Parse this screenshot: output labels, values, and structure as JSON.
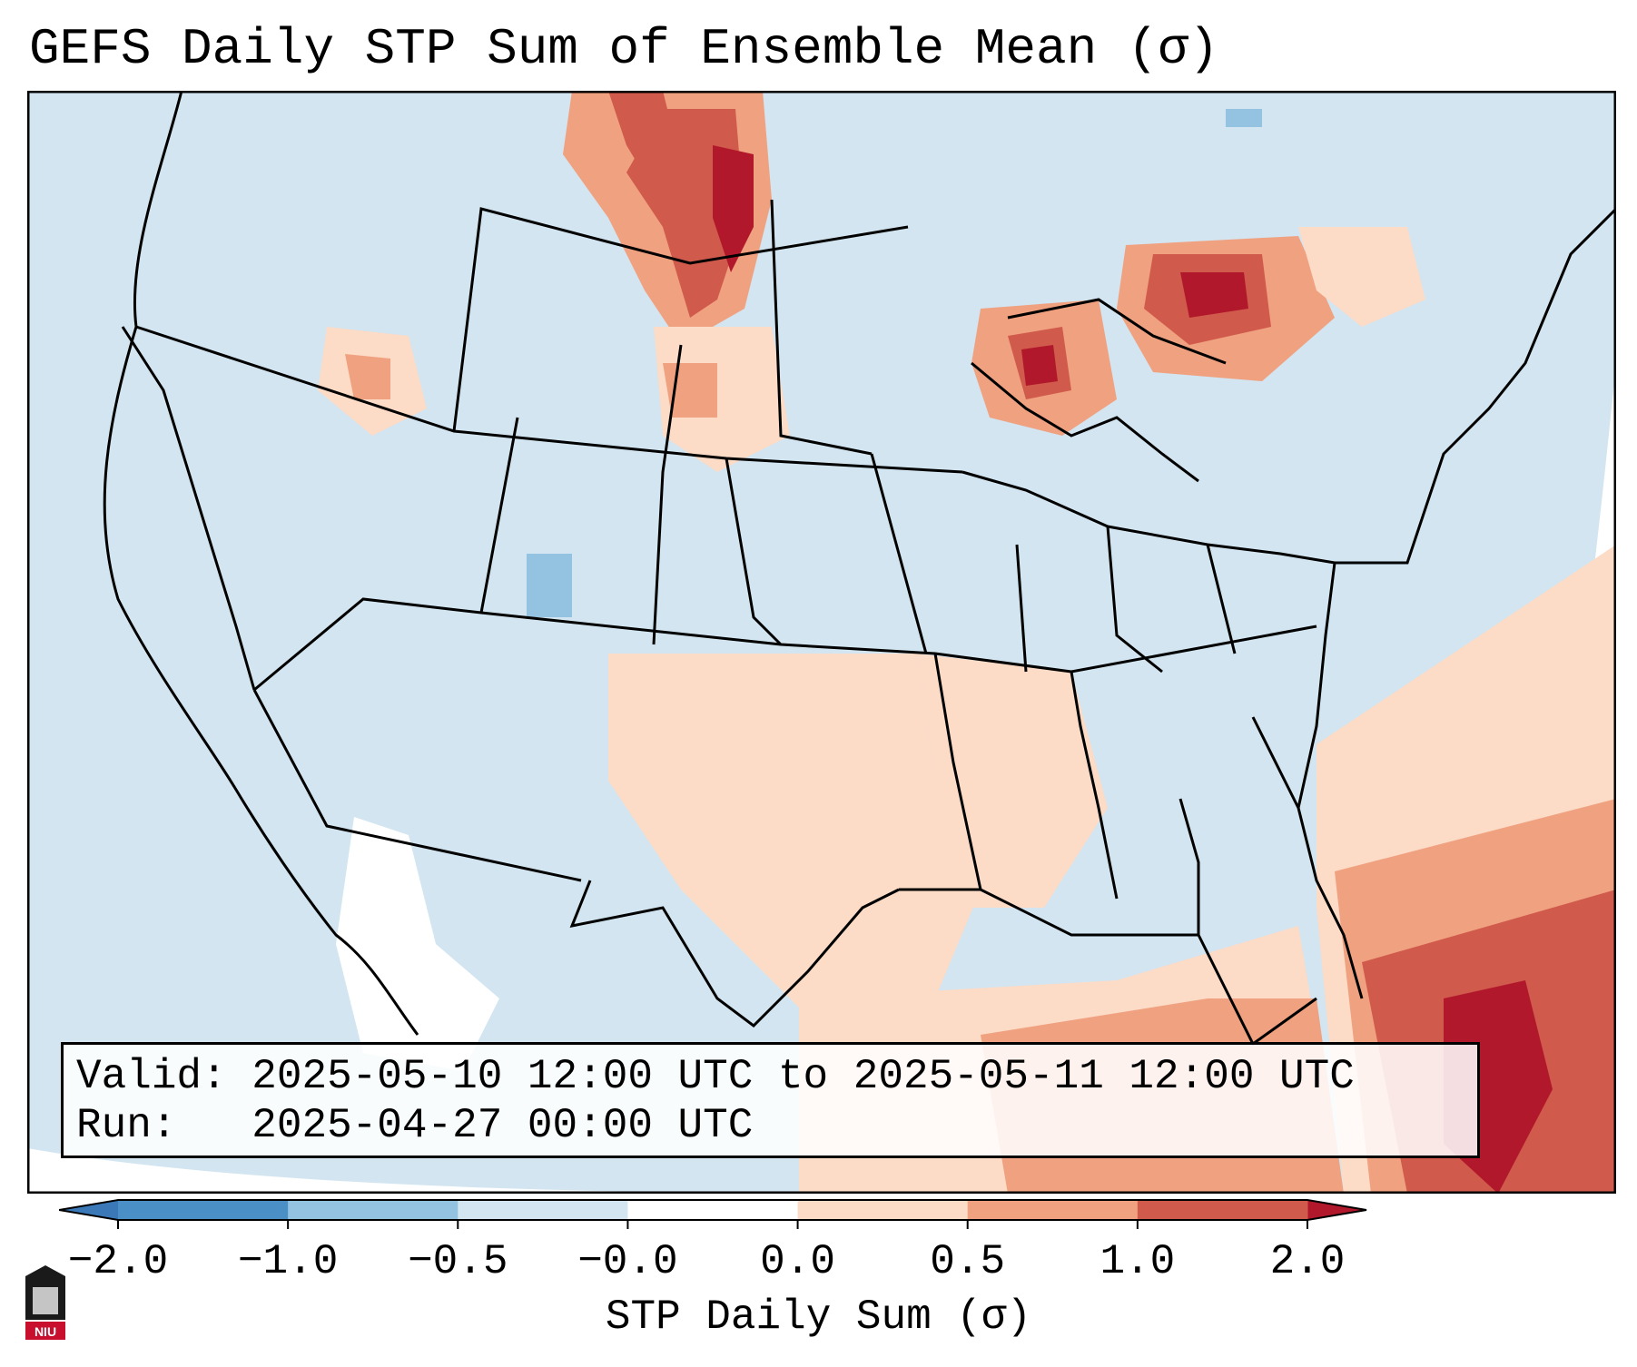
{
  "title": "GEFS Daily STP Sum of Ensemble Mean (σ)",
  "info": {
    "valid_label": "Valid:",
    "valid_value": "2025-05-10 12:00 UTC to 2025-05-11 12:00 UTC",
    "run_label": "Run:",
    "run_value": "2025-04-27 00:00 UTC"
  },
  "colorbar": {
    "label": "STP Daily Sum (σ)",
    "ticks": [
      "−2.0",
      "−1.0",
      "−0.5",
      "−0.0",
      "0.0",
      "0.5",
      "1.0",
      "2.0"
    ],
    "colors": [
      "#4a8fc6",
      "#93c3e0",
      "#d2e5f0",
      "#ffffff",
      "#fcdbc7",
      "#f0a180",
      "#d05a4c"
    ],
    "extend_low": "#3a78b8",
    "extend_high": "#b2182b"
  },
  "map": {
    "background": "#d2e5f0",
    "anomaly_regions": [
      {
        "region": "Northern Plains",
        "level": 2.0
      },
      {
        "region": "Upper Michigan / Lake Superior",
        "level": 2.0
      },
      {
        "region": "Ontario north of Lake Huron",
        "level": 2.0
      },
      {
        "region": "Gulf Coast",
        "level": 0.5
      },
      {
        "region": "Western Atlantic / Bahamas",
        "level": 2.0
      },
      {
        "region": "Northern Mexico",
        "level": -0.0
      }
    ]
  },
  "logo_text": "NIU"
}
